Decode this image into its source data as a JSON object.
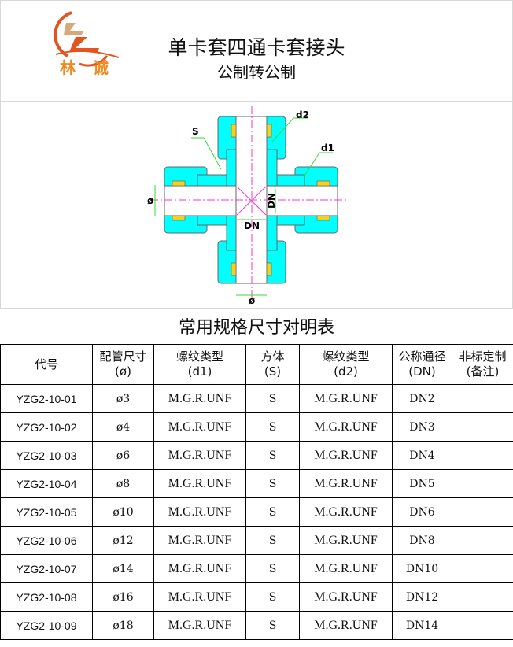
{
  "header": {
    "logo_text": [
      "林",
      "诚"
    ],
    "title": "单卡套四通卡套接头",
    "subtitle": "公制转公制"
  },
  "diagram": {
    "labels": {
      "s": "S",
      "d1": "d1",
      "d2": "d2",
      "dn_h": "DN",
      "dn_v": "DN",
      "dia_left": "ø",
      "dia_bottom": "ø"
    },
    "colors": {
      "body": "#00ffff",
      "ferrule": "#f2d21c",
      "centerline": "#ff33cc",
      "leader": "#33dd33"
    }
  },
  "table": {
    "title": "常用规格尺寸对明表",
    "headers": [
      [
        "代号",
        ""
      ],
      [
        "配管尺寸",
        "(ø)"
      ],
      [
        "螺纹类型",
        "(d1)"
      ],
      [
        "方体",
        "(S)"
      ],
      [
        "螺纹类型",
        "(d2)"
      ],
      [
        "公称通径",
        "(DN)"
      ],
      [
        "非标定制",
        "(备注)"
      ]
    ],
    "rows": [
      [
        "YZG2-10-01",
        "ø3",
        "M.G.R.UNF",
        "S",
        "M.G.R.UNF",
        "DN2",
        ""
      ],
      [
        "YZG2-10-02",
        "ø4",
        "M.G.R.UNF",
        "S",
        "M.G.R.UNF",
        "DN3",
        ""
      ],
      [
        "YZG2-10-03",
        "ø6",
        "M.G.R.UNF",
        "S",
        "M.G.R.UNF",
        "DN4",
        ""
      ],
      [
        "YZG2-10-04",
        "ø8",
        "M.G.R.UNF",
        "S",
        "M.G.R.UNF",
        "DN5",
        ""
      ],
      [
        "YZG2-10-05",
        "ø10",
        "M.G.R.UNF",
        "S",
        "M.G.R.UNF",
        "DN6",
        ""
      ],
      [
        "YZG2-10-06",
        "ø12",
        "M.G.R.UNF",
        "S",
        "M.G.R.UNF",
        "DN8",
        ""
      ],
      [
        "YZG2-10-07",
        "ø14",
        "M.G.R.UNF",
        "S",
        "M.G.R.UNF",
        "DN10",
        ""
      ],
      [
        "YZG2-10-08",
        "ø16",
        "M.G.R.UNF",
        "S",
        "M.G.R.UNF",
        "DN12",
        ""
      ],
      [
        "YZG2-10-09",
        "ø18",
        "M.G.R.UNF",
        "S",
        "M.G.R.UNF",
        "DN14",
        ""
      ]
    ]
  }
}
